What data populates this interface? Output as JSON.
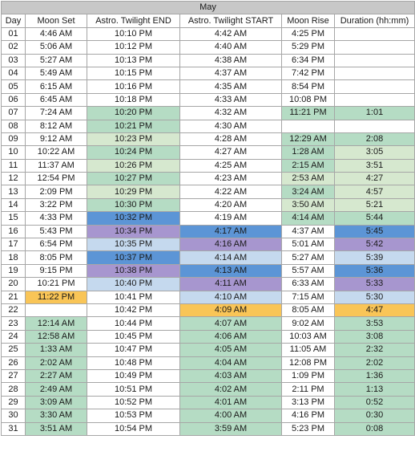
{
  "title": "May",
  "columns": [
    "Day",
    "Moon Set",
    "Astro. Twilight END",
    "Astro. Twilight START",
    "Moon Rise",
    "Duration (hh:mm)"
  ],
  "colors": {
    "green": "#b5dcc4",
    "light_green": "#d6e8cf",
    "blue": "#5c95d6",
    "light_blue": "#c5d9ee",
    "purple": "#a796cf",
    "yellow": "#f9c557",
    "none": "#ffffff"
  },
  "rows": [
    {
      "cells": [
        "01",
        "4:46 AM",
        "10:10 PM",
        "4:42 AM",
        "4:25 PM",
        ""
      ],
      "fills": [
        "none",
        "none",
        "none",
        "none",
        "none",
        "none"
      ]
    },
    {
      "cells": [
        "02",
        "5:06 AM",
        "10:12 PM",
        "4:40 AM",
        "5:29 PM",
        ""
      ],
      "fills": [
        "none",
        "none",
        "none",
        "none",
        "none",
        "none"
      ]
    },
    {
      "cells": [
        "03",
        "5:27 AM",
        "10:13 PM",
        "4:38 AM",
        "6:34 PM",
        ""
      ],
      "fills": [
        "none",
        "none",
        "none",
        "none",
        "none",
        "none"
      ]
    },
    {
      "cells": [
        "04",
        "5:49 AM",
        "10:15 PM",
        "4:37 AM",
        "7:42 PM",
        ""
      ],
      "fills": [
        "none",
        "none",
        "none",
        "none",
        "none",
        "none"
      ]
    },
    {
      "cells": [
        "05",
        "6:15 AM",
        "10:16 PM",
        "4:35 AM",
        "8:54 PM",
        ""
      ],
      "fills": [
        "none",
        "none",
        "none",
        "none",
        "none",
        "none"
      ]
    },
    {
      "cells": [
        "06",
        "6:45 AM",
        "10:18 PM",
        "4:33 AM",
        "10:08 PM",
        ""
      ],
      "fills": [
        "none",
        "none",
        "none",
        "none",
        "none",
        "none"
      ]
    },
    {
      "cells": [
        "07",
        "7:24 AM",
        "10:20 PM",
        "4:32 AM",
        "11:21 PM",
        "1:01"
      ],
      "fills": [
        "none",
        "none",
        "green",
        "none",
        "green",
        "green"
      ]
    },
    {
      "cells": [
        "08",
        "8:12 AM",
        "10:21 PM",
        "4:30 AM",
        "",
        ""
      ],
      "fills": [
        "none",
        "none",
        "green",
        "none",
        "none",
        "none"
      ]
    },
    {
      "cells": [
        "09",
        "9:12 AM",
        "10:23 PM",
        "4:28 AM",
        "12:29 AM",
        "2:08"
      ],
      "fills": [
        "none",
        "none",
        "light_green",
        "none",
        "green",
        "green"
      ]
    },
    {
      "cells": [
        "10",
        "10:22 AM",
        "10:24 PM",
        "4:27 AM",
        "1:28 AM",
        "3:05"
      ],
      "fills": [
        "none",
        "none",
        "green",
        "none",
        "green",
        "light_green"
      ]
    },
    {
      "cells": [
        "11",
        "11:37 AM",
        "10:26 PM",
        "4:25 AM",
        "2:15 AM",
        "3:51"
      ],
      "fills": [
        "none",
        "none",
        "light_green",
        "none",
        "green",
        "light_green"
      ]
    },
    {
      "cells": [
        "12",
        "12:54 PM",
        "10:27 PM",
        "4:23 AM",
        "2:53 AM",
        "4:27"
      ],
      "fills": [
        "none",
        "none",
        "green",
        "none",
        "light_green",
        "light_green"
      ]
    },
    {
      "cells": [
        "13",
        "2:09 PM",
        "10:29 PM",
        "4:22 AM",
        "3:24 AM",
        "4:57"
      ],
      "fills": [
        "none",
        "none",
        "light_green",
        "none",
        "green",
        "light_green"
      ]
    },
    {
      "cells": [
        "14",
        "3:22 PM",
        "10:30 PM",
        "4:20 AM",
        "3:50 AM",
        "5:21"
      ],
      "fills": [
        "none",
        "none",
        "green",
        "none",
        "light_green",
        "light_green"
      ]
    },
    {
      "cells": [
        "15",
        "4:33 PM",
        "10:32 PM",
        "4:19 AM",
        "4:14 AM",
        "5:44"
      ],
      "fills": [
        "none",
        "none",
        "blue",
        "none",
        "green",
        "green"
      ]
    },
    {
      "cells": [
        "16",
        "5:43 PM",
        "10:34 PM",
        "4:17 AM",
        "4:37 AM",
        "5:45"
      ],
      "fills": [
        "none",
        "none",
        "purple",
        "blue",
        "none",
        "blue"
      ]
    },
    {
      "cells": [
        "17",
        "6:54 PM",
        "10:35 PM",
        "4:16 AM",
        "5:01 AM",
        "5:42"
      ],
      "fills": [
        "none",
        "none",
        "light_blue",
        "purple",
        "none",
        "purple"
      ]
    },
    {
      "cells": [
        "18",
        "8:05 PM",
        "10:37 PM",
        "4:14 AM",
        "5:27 AM",
        "5:39"
      ],
      "fills": [
        "none",
        "none",
        "blue",
        "light_blue",
        "none",
        "light_blue"
      ]
    },
    {
      "cells": [
        "19",
        "9:15 PM",
        "10:38 PM",
        "4:13 AM",
        "5:57 AM",
        "5:36"
      ],
      "fills": [
        "none",
        "none",
        "purple",
        "blue",
        "none",
        "blue"
      ]
    },
    {
      "cells": [
        "20",
        "10:21 PM",
        "10:40 PM",
        "4:11 AM",
        "6:33 AM",
        "5:33"
      ],
      "fills": [
        "none",
        "none",
        "light_blue",
        "purple",
        "none",
        "purple"
      ]
    },
    {
      "cells": [
        "21",
        "11:22 PM",
        "10:41 PM",
        "4:10 AM",
        "7:15 AM",
        "5:30"
      ],
      "fills": [
        "none",
        "yellow",
        "none",
        "light_blue",
        "none",
        "light_blue"
      ]
    },
    {
      "cells": [
        "22",
        "",
        "10:42 PM",
        "4:09 AM",
        "8:05 AM",
        "4:47"
      ],
      "fills": [
        "none",
        "none",
        "none",
        "yellow",
        "none",
        "yellow"
      ]
    },
    {
      "cells": [
        "23",
        "12:14 AM",
        "10:44 PM",
        "4:07 AM",
        "9:02 AM",
        "3:53"
      ],
      "fills": [
        "none",
        "green",
        "none",
        "green",
        "none",
        "green"
      ]
    },
    {
      "cells": [
        "24",
        "12:58 AM",
        "10:45 PM",
        "4:06 AM",
        "10:03 AM",
        "3:08"
      ],
      "fills": [
        "none",
        "green",
        "none",
        "green",
        "none",
        "green"
      ]
    },
    {
      "cells": [
        "25",
        "1:33 AM",
        "10:47 PM",
        "4:05 AM",
        "11:05 AM",
        "2:32"
      ],
      "fills": [
        "none",
        "green",
        "none",
        "green",
        "none",
        "green"
      ]
    },
    {
      "cells": [
        "26",
        "2:02 AM",
        "10:48 PM",
        "4:04 AM",
        "12:08 PM",
        "2:02"
      ],
      "fills": [
        "none",
        "green",
        "none",
        "green",
        "none",
        "green"
      ]
    },
    {
      "cells": [
        "27",
        "2:27 AM",
        "10:49 PM",
        "4:03 AM",
        "1:09 PM",
        "1:36"
      ],
      "fills": [
        "none",
        "green",
        "none",
        "green",
        "none",
        "green"
      ]
    },
    {
      "cells": [
        "28",
        "2:49 AM",
        "10:51 PM",
        "4:02 AM",
        "2:11 PM",
        "1:13"
      ],
      "fills": [
        "none",
        "green",
        "none",
        "green",
        "none",
        "green"
      ]
    },
    {
      "cells": [
        "29",
        "3:09 AM",
        "10:52 PM",
        "4:01 AM",
        "3:13 PM",
        "0:52"
      ],
      "fills": [
        "none",
        "green",
        "none",
        "green",
        "none",
        "green"
      ]
    },
    {
      "cells": [
        "30",
        "3:30 AM",
        "10:53 PM",
        "4:00 AM",
        "4:16 PM",
        "0:30"
      ],
      "fills": [
        "none",
        "green",
        "none",
        "green",
        "none",
        "green"
      ]
    },
    {
      "cells": [
        "31",
        "3:51 AM",
        "10:54 PM",
        "3:59 AM",
        "5:23 PM",
        "0:08"
      ],
      "fills": [
        "none",
        "green",
        "none",
        "green",
        "none",
        "green"
      ]
    }
  ]
}
